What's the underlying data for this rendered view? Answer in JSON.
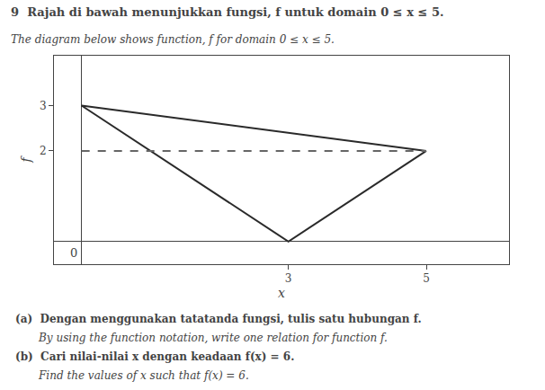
{
  "chart_data": {
    "type": "line",
    "title": "9  Rajah di bawah menunjukkan fungsi, f untuk domain 0 ≤ x ≤ 5.",
    "subtitle": "The diagram below shows function, f for domain 0 ≤ x ≤ 5.",
    "x_label": "x",
    "y_label": "f",
    "series": [
      {
        "x": [
          0,
          3,
          5
        ],
        "values": [
          3,
          0,
          2
        ],
        "color": "#2a2a2a",
        "line_style": "solid"
      },
      {
        "x": [
          0,
          5
        ],
        "values": [
          3,
          2
        ],
        "color": "#2a2a2a",
        "line_style": "solid"
      },
      {
        "x": [
          0,
          5
        ],
        "values": [
          2,
          2
        ],
        "color": "#666666",
        "line_style": "dashed"
      }
    ],
    "xlim": [
      -0.4,
      6.2
    ],
    "ylim": [
      -0.5,
      4.1
    ],
    "xticks": [
      3,
      5
    ],
    "yticks": [
      2,
      3
    ],
    "grid": false,
    "annotations": [
      {
        "text": "0",
        "x": 0,
        "y": 0
      },
      {
        "text": "(a)  Dengan menggunakan tatatanda fungsi, tulis satu hubungan f."
      },
      {
        "text": "By using the function notation, write one relation for function f."
      },
      {
        "text": "(b)  Cari nilai-nilai x dengan keadaan f(x) = 6."
      },
      {
        "text": "Find the values of x such that f(x) = 6."
      }
    ]
  }
}
